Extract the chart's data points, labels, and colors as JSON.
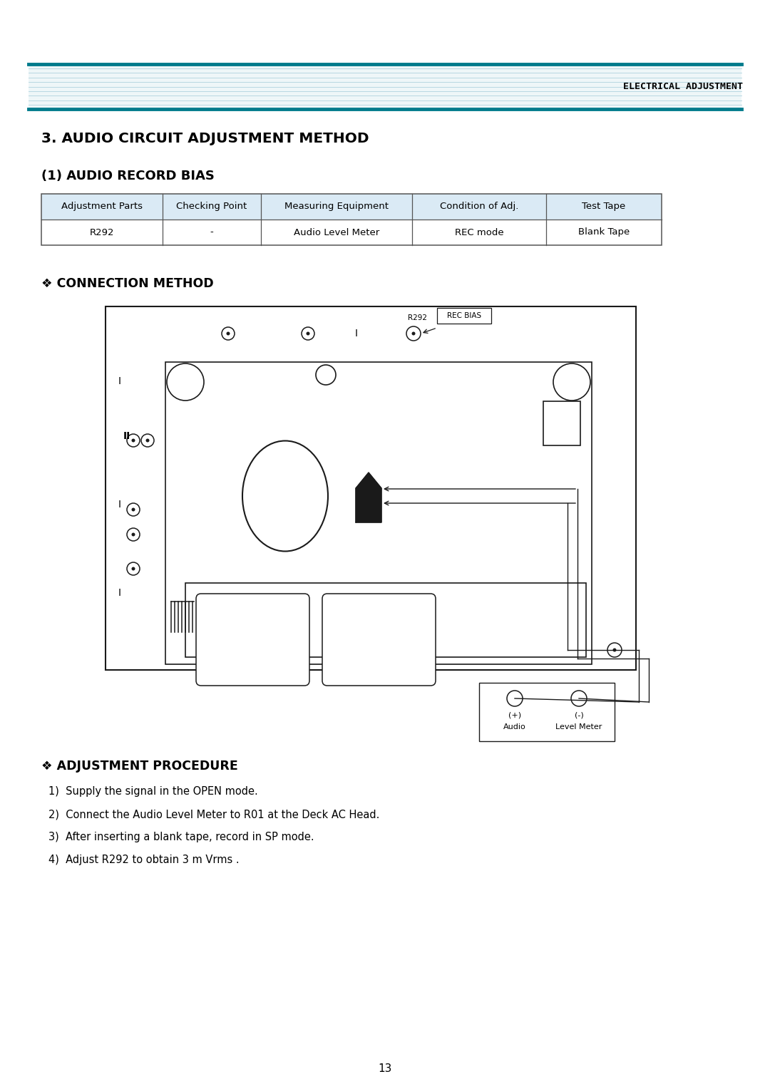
{
  "page_title": "ELECTRICAL ADJUSTMENT",
  "section_title": "3. AUDIO CIRCUIT ADJUSTMENT METHOD",
  "subsection_title": "(1) AUDIO RECORD BIAS",
  "connection_method_title": "❖ CONNECTION METHOD",
  "adjustment_procedure_title": "❖ ADJUSTMENT PROCEDURE",
  "table_headers": [
    "Adjustment Parts",
    "Checking Point",
    "Measuring Equipment",
    "Condition of Adj.",
    "Test Tape"
  ],
  "table_data": [
    [
      "R292",
      "-",
      "Audio Level Meter",
      "REC mode",
      "Blank Tape"
    ]
  ],
  "table_header_bg": "#daeaf5",
  "table_border_color": "#555555",
  "header_stripe_teal": "#007b8c",
  "header_stripe_light": "#b8d8e2",
  "procedure_steps": [
    "1)  Supply the signal in the OPEN mode.",
    "2)  Connect the Audio Level Meter to R01 at the Deck AC Head.",
    "3)  After inserting a blank tape, record in SP mode.",
    "4)  Adjust R292 to obtain 3 m Vrms ."
  ],
  "page_number": "13",
  "bg_color": "#ffffff",
  "text_color": "#000000",
  "diag_color": "#1a1a1a",
  "rec_bias_label": "REC BIAS",
  "r292_label": "R292",
  "meter_label_plus": "(+)",
  "meter_label_minus": "(-)",
  "meter_label_audio": "Audio",
  "meter_label_lm": "Level Meter"
}
